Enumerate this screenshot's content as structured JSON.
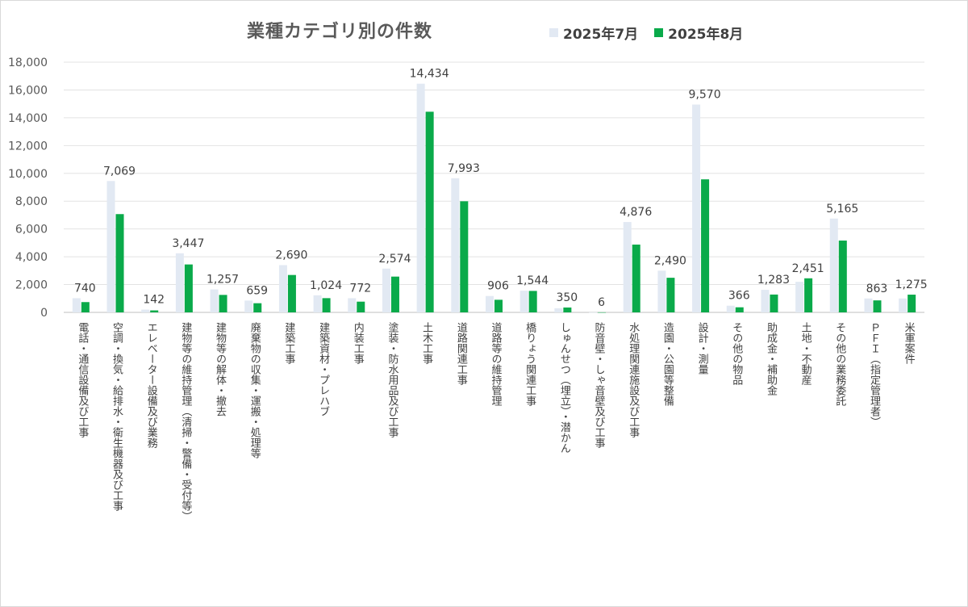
{
  "chart_data": {
    "type": "bar",
    "title": "業種カテゴリ別の件数",
    "ylim": [
      0,
      18000
    ],
    "yticks": [
      "0",
      "2,000",
      "4,000",
      "6,000",
      "8,000",
      "10,000",
      "12,000",
      "14,000",
      "16,000",
      "18,000"
    ],
    "grid": true,
    "legend_position": "top",
    "categories": [
      "電話・通信設備及び工事",
      "空調・換気・給排水・衛生機器及び工事",
      "エレベーター設備及び業務",
      "建物等の維持管理（清掃・警備・受付等）",
      "建物等の解体・撤去",
      "廃棄物の収集・運搬・処理等",
      "建築工事",
      "建築資材・プレハブ",
      "内装工事",
      "塗装・防水用品及び工事",
      "土木工事",
      "道路関連工事",
      "道路等の維持管理",
      "橋りょう関連工事",
      "しゅんせつ（埋立）・潜かん",
      "防音壁・しゃ音壁及び工事",
      "水処理関連施設及び工事",
      "造園・公園等整備",
      "設計・測量",
      "その他の物品",
      "助成金・補助金",
      "土地・不動産",
      "その他の業務委託",
      "ＰＦＩ（指定管理者）",
      "米軍案件"
    ],
    "series": [
      {
        "name": "2025年7月",
        "color": "#e2e9f3",
        "values": [
          1020,
          9450,
          200,
          4250,
          1650,
          850,
          3400,
          1230,
          1020,
          3150,
          16450,
          9650,
          1180,
          1560,
          300,
          6,
          6500,
          3000,
          14950,
          480,
          1620,
          2200,
          6750,
          1000,
          1000
        ],
        "labels": []
      },
      {
        "name": "2025年8月",
        "color": "#0aaa4a",
        "values": [
          740,
          7069,
          142,
          3447,
          1257,
          659,
          2690,
          1024,
          772,
          2574,
          14434,
          7993,
          906,
          1544,
          350,
          6,
          4876,
          2490,
          9570,
          366,
          1283,
          2451,
          5165,
          863,
          1275
        ],
        "labels": [
          "740",
          "7,069",
          "142",
          "3,447",
          "1,257",
          "659",
          "2,690",
          "1,024",
          "772",
          "2,574",
          "14,434",
          "7,993",
          "906",
          "1,544",
          "350",
          "6",
          "4,876",
          "2,490",
          "9,570",
          "366",
          "1,283",
          "2,451",
          "5,165",
          "863",
          "1,275"
        ]
      }
    ]
  }
}
